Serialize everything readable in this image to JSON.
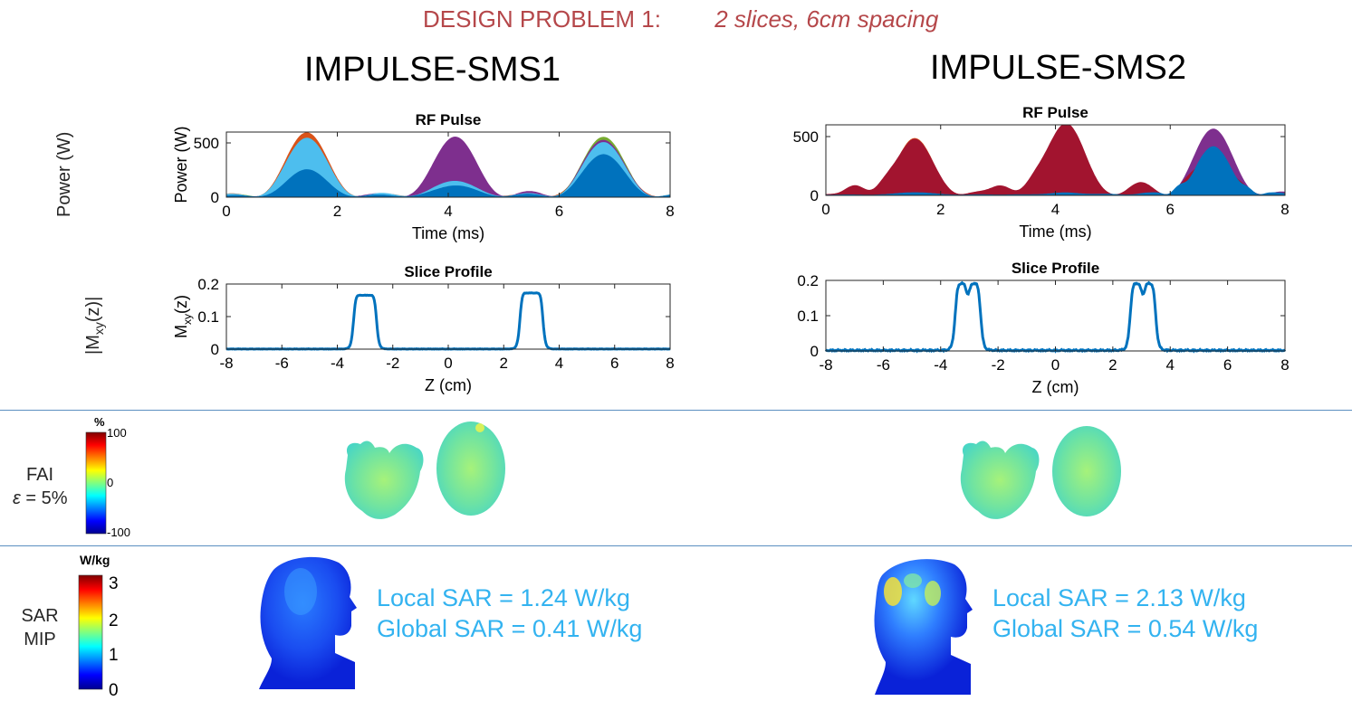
{
  "header": {
    "problem": "DESIGN PROBLEM 1:",
    "spec": "2 slices, 6cm spacing"
  },
  "rows": {
    "power_label": "Power (W)",
    "mxy_label": "|M",
    "mxy_sub": "xy",
    "mxy_tail": "(z)|",
    "fai_label": "FAI",
    "fai_eps": "ε",
    "fai_eps_tail": " = 5%",
    "sar_label_1": "SAR",
    "sar_label_2": "MIP"
  },
  "colorbars": {
    "fai": {
      "unit": "%",
      "max": "100",
      "mid": "0",
      "min": "-100"
    },
    "sar": {
      "unit": "W/kg",
      "ticks": [
        "3",
        "2",
        "1",
        "0"
      ]
    }
  },
  "columns": [
    {
      "title": "IMPULSE-SMS1",
      "local_sar": "Local SAR = 1.24 W/kg",
      "global_sar": "Global SAR = 0.41 W/kg"
    },
    {
      "title": "IMPULSE-SMS2",
      "local_sar": "Local SAR = 2.13 W/kg",
      "global_sar": "Global SAR = 0.54 W/kg"
    }
  ],
  "chart_data": [
    {
      "type": "area",
      "id": "rf1",
      "title": "RF Pulse",
      "xlabel": "Time (ms)",
      "ylabel": "Power (W)",
      "xlim": [
        0,
        8
      ],
      "ylim": [
        0,
        600
      ],
      "xticks": [
        0,
        2,
        4,
        6,
        8
      ],
      "yticks": [
        0,
        500
      ],
      "series": [
        {
          "name": "ch-orange",
          "color": "#d95319",
          "peaks": [
            [
              1.45,
              590,
              0.95
            ],
            [
              4.12,
              40,
              0.9
            ],
            [
              6.8,
              450,
              1.0
            ]
          ]
        },
        {
          "name": "ch-green",
          "color": "#77ac30",
          "peaks": [
            [
              1.45,
              470,
              0.9
            ],
            [
              4.12,
              40,
              0.9
            ],
            [
              6.8,
              550,
              0.95
            ]
          ]
        },
        {
          "name": "ch-purple",
          "color": "#7e2f8e",
          "peaks": [
            [
              1.45,
              60,
              0.9
            ],
            [
              4.12,
              550,
              0.95
            ],
            [
              6.8,
              520,
              0.95
            ]
          ]
        },
        {
          "name": "ch-lightblue",
          "color": "#4dbeee",
          "peaks": [
            [
              1.45,
              540,
              0.95
            ],
            [
              4.12,
              140,
              0.9
            ],
            [
              6.8,
              500,
              0.95
            ]
          ]
        },
        {
          "name": "ch-blue",
          "color": "#0072bd",
          "peaks": [
            [
              1.45,
              250,
              0.9
            ],
            [
              4.12,
              100,
              0.9
            ],
            [
              6.8,
              390,
              0.95
            ]
          ]
        }
      ]
    },
    {
      "type": "line",
      "id": "sp1",
      "title": "Slice Profile",
      "xlabel": "Z (cm)",
      "ylabel": "M",
      "ylabel_sub": "xy",
      "ylabel_tail": "(z)",
      "xlim": [
        -8,
        8
      ],
      "ylim": [
        0,
        0.2
      ],
      "xticks": [
        -8,
        -6,
        -4,
        -2,
        0,
        2,
        4,
        6,
        8
      ],
      "yticks": [
        0,
        0.1,
        0.2
      ],
      "slices": [
        {
          "center": -3.0,
          "width": 0.42,
          "height": 0.165,
          "dip": 0
        },
        {
          "center": 3.0,
          "width": 0.42,
          "height": 0.172,
          "dip": 0
        }
      ],
      "noise": 0.001
    },
    {
      "type": "area",
      "id": "rf2",
      "title": "RF Pulse",
      "xlabel": "Time (ms)",
      "ylabel": "",
      "xlim": [
        0,
        8
      ],
      "ylim": [
        0,
        600
      ],
      "xticks": [
        0,
        2,
        4,
        6,
        8
      ],
      "yticks": [
        0,
        500
      ],
      "series": [
        {
          "name": "ch-orange",
          "color": "#d95319",
          "peaks": [
            [
              1.55,
              480,
              0.8
            ],
            [
              4.18,
              200,
              0.8
            ],
            [
              6.75,
              300,
              0.8
            ]
          ]
        },
        {
          "name": "ch-purple",
          "color": "#7e2f8e",
          "peaks": [
            [
              1.55,
              300,
              0.8
            ],
            [
              4.18,
              200,
              0.8
            ],
            [
              6.75,
              560,
              0.85
            ]
          ]
        },
        {
          "name": "ch-red",
          "color": "#a2142f",
          "peaks": [
            [
              0.55,
              60,
              0.4
            ],
            [
              1.0,
              70,
              0.4
            ],
            [
              1.55,
              470,
              0.8
            ],
            [
              3.1,
              50,
              0.4
            ],
            [
              3.6,
              75,
              0.45
            ],
            [
              4.18,
              600,
              0.85
            ],
            [
              5.5,
              70,
              0.45
            ],
            [
              6.3,
              55,
              0.4
            ],
            [
              6.75,
              300,
              0.8
            ],
            [
              7.3,
              35,
              0.35
            ]
          ]
        },
        {
          "name": "ch-blue",
          "color": "#0072bd",
          "peaks": [
            [
              1.55,
              20,
              0.8
            ],
            [
              4.18,
              15,
              0.8
            ],
            [
              6.75,
              410,
              0.75
            ],
            [
              6.15,
              60,
              0.25
            ],
            [
              7.35,
              45,
              0.25
            ]
          ]
        }
      ]
    },
    {
      "type": "line",
      "id": "sp2",
      "title": "Slice Profile",
      "xlabel": "Z (cm)",
      "ylabel": "",
      "xlim": [
        -8,
        8
      ],
      "ylim": [
        0,
        0.2
      ],
      "xticks": [
        -8,
        -6,
        -4,
        -2,
        0,
        2,
        4,
        6,
        8
      ],
      "yticks": [
        0,
        0.1,
        0.2
      ],
      "slices": [
        {
          "center": -3.05,
          "width": 0.45,
          "height": 0.19,
          "dip": 0.03
        },
        {
          "center": 3.05,
          "width": 0.45,
          "height": 0.19,
          "dip": 0.03
        }
      ],
      "noise": 0.004
    }
  ]
}
